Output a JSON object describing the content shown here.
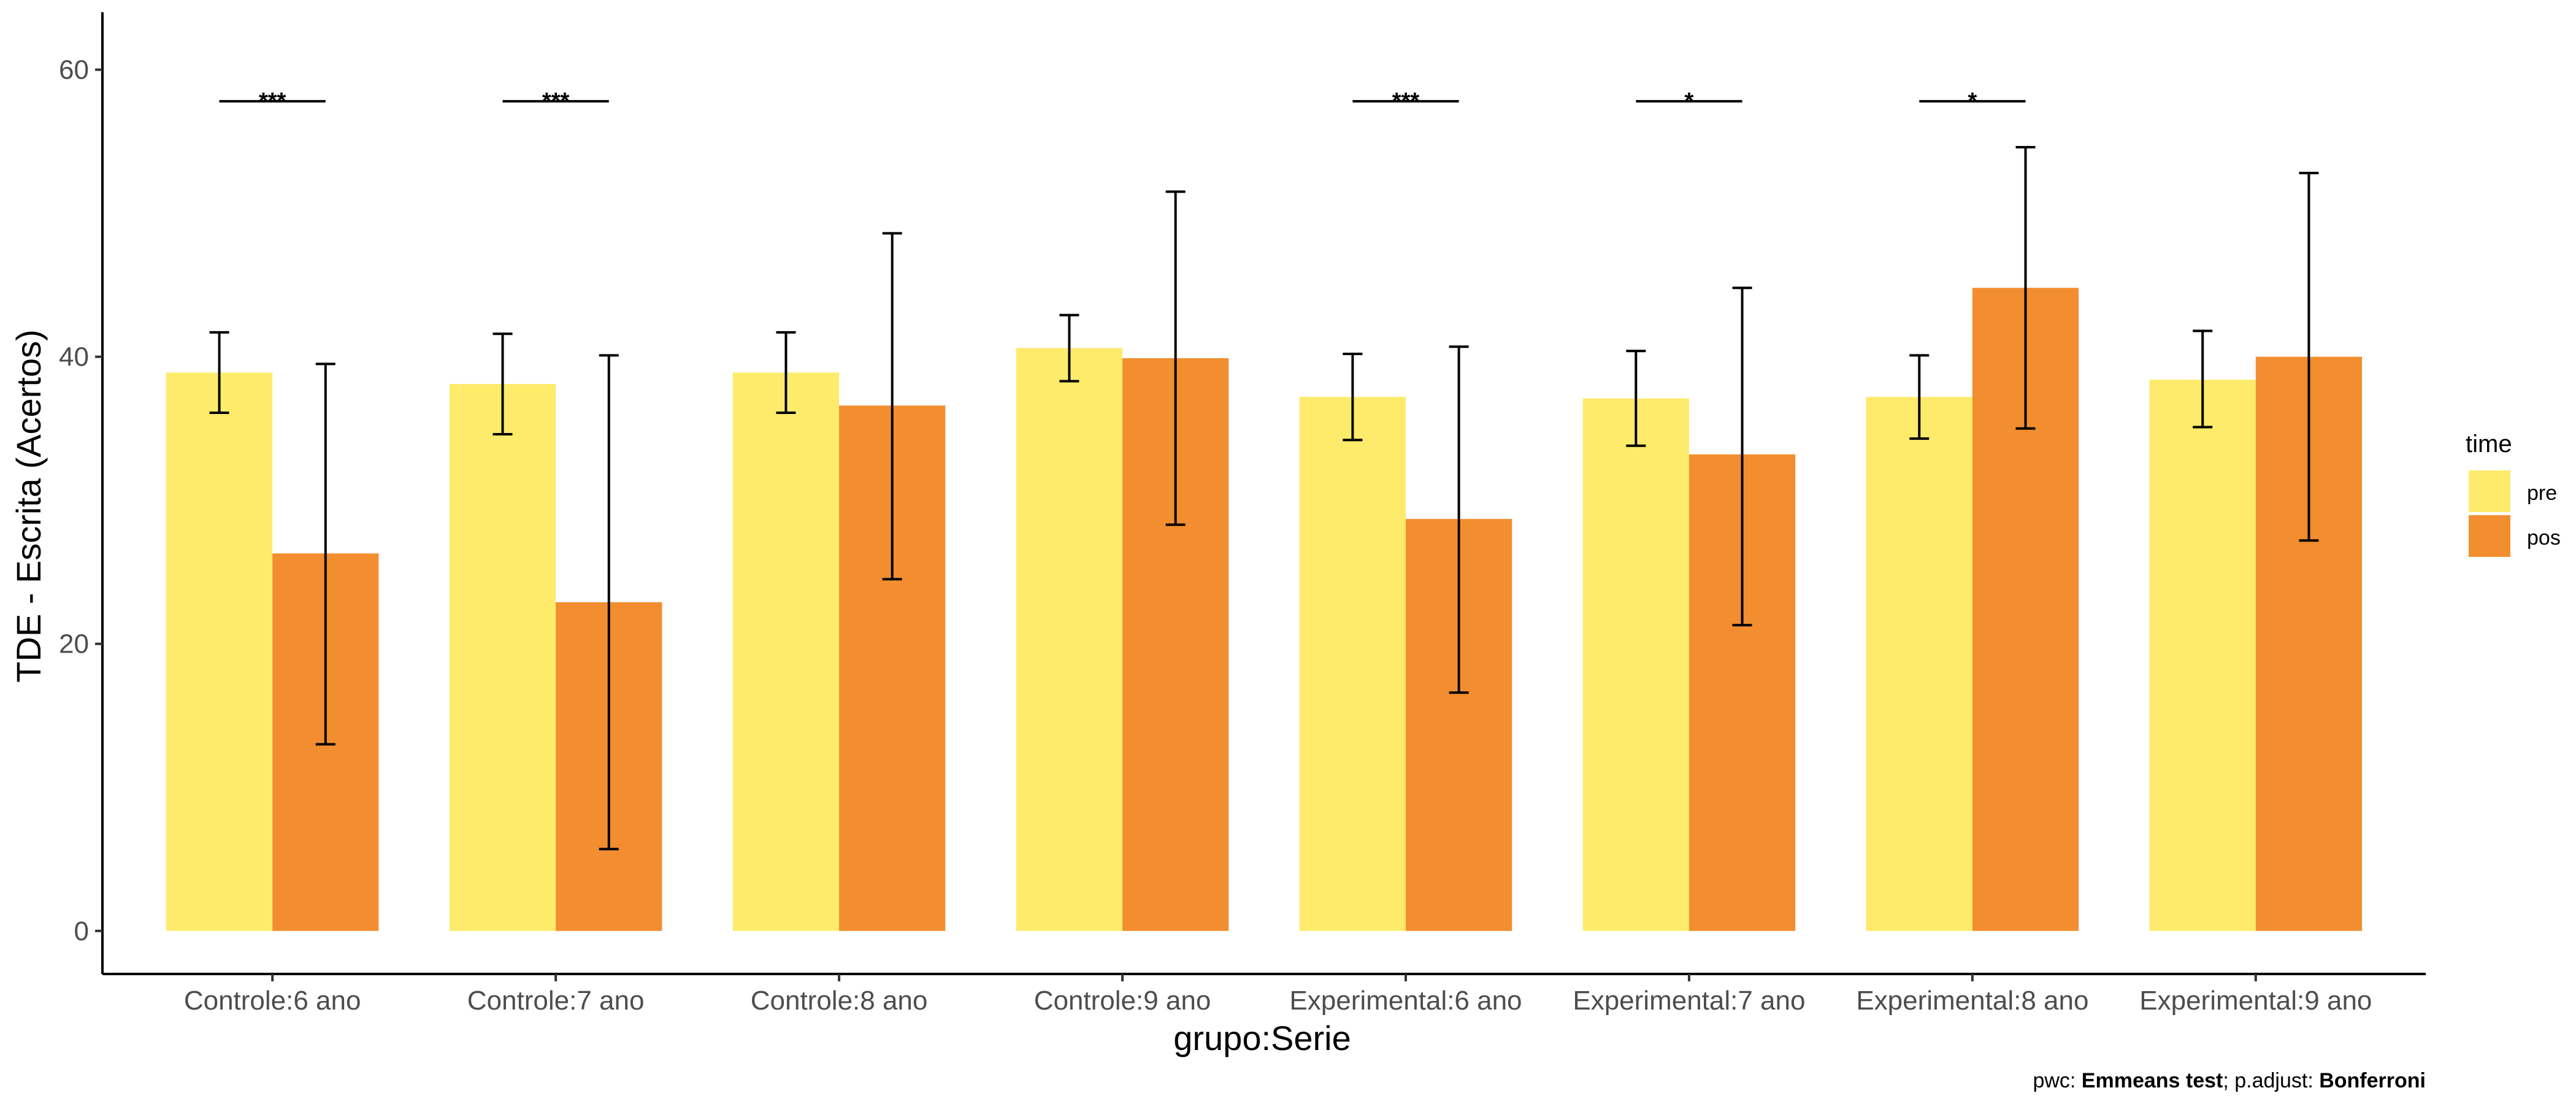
{
  "chart_data": {
    "type": "bar",
    "xlabel": "grupo:Serie",
    "ylabel": "TDE - Escrita (Acertos)",
    "ylim": [
      -3,
      64
    ],
    "yticks": [
      0,
      20,
      40,
      60
    ],
    "categories": [
      "Controle:6 ano",
      "Controle:7 ano",
      "Controle:8 ano",
      "Controle:9 ano",
      "Experimental:6 ano",
      "Experimental:7 ano",
      "Experimental:8 ano",
      "Experimental:9 ano"
    ],
    "legend": {
      "title": "time",
      "position": "right"
    },
    "series": [
      {
        "name": "pre",
        "color": "#FEEB6B",
        "values": [
          38.9,
          38.1,
          38.9,
          40.6,
          37.2,
          37.1,
          37.2,
          38.4
        ],
        "error_low": [
          36.1,
          34.6,
          36.1,
          38.3,
          34.2,
          33.8,
          34.3,
          35.1
        ],
        "error_high": [
          41.7,
          41.6,
          41.7,
          42.9,
          40.2,
          40.4,
          40.1,
          41.8
        ]
      },
      {
        "name": "pos",
        "color": "#F28E2F",
        "values": [
          26.3,
          22.9,
          36.6,
          39.9,
          28.7,
          33.2,
          44.8,
          40.0
        ],
        "error_low": [
          13.0,
          5.7,
          24.5,
          28.3,
          16.6,
          21.3,
          35.0,
          27.2
        ],
        "error_high": [
          39.5,
          40.1,
          48.6,
          51.5,
          40.7,
          44.8,
          54.6,
          52.8
        ]
      }
    ],
    "significance": [
      {
        "category_index": 0,
        "label": "***",
        "y": 57.8
      },
      {
        "category_index": 1,
        "label": "***",
        "y": 57.8
      },
      {
        "category_index": 4,
        "label": "***",
        "y": 57.8
      },
      {
        "category_index": 5,
        "label": "*",
        "y": 57.8
      },
      {
        "category_index": 6,
        "label": "*",
        "y": 57.8
      }
    ],
    "caption": {
      "prefix": "pwc: ",
      "test": "Emmeans test",
      "middle": "; p.adjust: ",
      "method": "Bonferroni"
    }
  }
}
